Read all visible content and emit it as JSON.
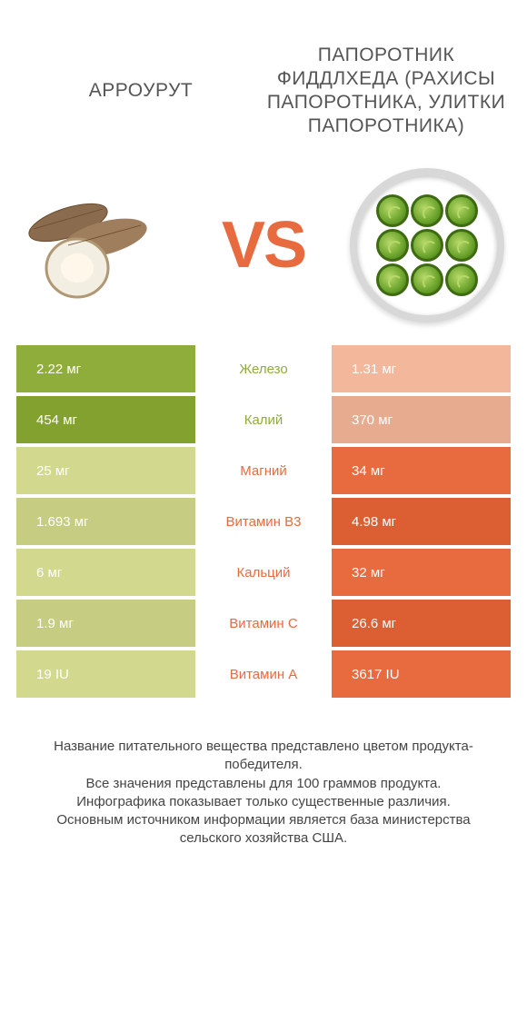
{
  "header": {
    "left_title": "АРРОУРУТ",
    "right_title": "ПАПОРОТНИК ФИДДЛХЕДА (РАХИСЫ ПАПОРОТНИКА, УЛИТКИ ПАПОРОТНИКА)",
    "vs_label": "VS"
  },
  "colors": {
    "left_win": "#8fad3a",
    "left_bg_loss": "#d2d98e",
    "right_win": "#e86a3f",
    "right_bg_loss": "#f3b79c",
    "mid_left_text": "#8fad3a",
    "mid_right_text": "#e86a3f",
    "row_alt_shade": "#00000010"
  },
  "rows": [
    {
      "label": "Железо",
      "left": "2.22 мг",
      "right": "1.31 мг",
      "winner": "left"
    },
    {
      "label": "Калий",
      "left": "454 мг",
      "right": "370 мг",
      "winner": "left"
    },
    {
      "label": "Магний",
      "left": "25 мг",
      "right": "34 мг",
      "winner": "right"
    },
    {
      "label": "Витамин B3",
      "left": "1.693 мг",
      "right": "4.98 мг",
      "winner": "right"
    },
    {
      "label": "Кальций",
      "left": "6 мг",
      "right": "32 мг",
      "winner": "right"
    },
    {
      "label": "Витамин C",
      "left": "1.9 мг",
      "right": "26.6 мг",
      "winner": "right"
    },
    {
      "label": "Витамин A",
      "left": "19 IU",
      "right": "3617 IU",
      "winner": "right"
    }
  ],
  "footer": {
    "line1": "Название питательного вещества представлено цветом продукта-победителя.",
    "line2": "Все значения представлены для 100 граммов продукта.",
    "line3": "Инфографика показывает только существенные различия.",
    "line4": "Основным источником информации является база министерства сельского хозяйства США."
  }
}
